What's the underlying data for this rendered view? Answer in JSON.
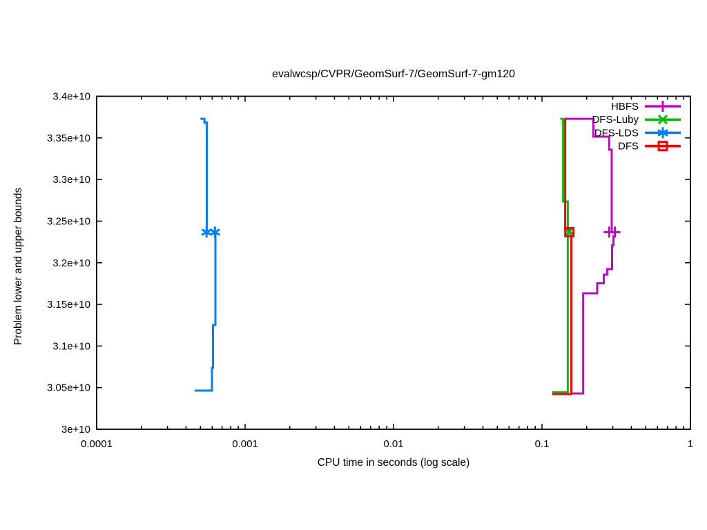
{
  "page": {
    "background": "#ffffff",
    "frame_color": "#000000"
  },
  "chart_data": {
    "type": "line",
    "title": "evalwcsp/CVPR/GeomSurf-7/GeomSurf-7-gm120",
    "grid": false,
    "legend_position": "top-right-inside",
    "x_axis": {
      "label": "CPU time in seconds (log scale)",
      "scale": "log",
      "min": 0.0001,
      "max": 1,
      "major_ticks": [
        {
          "value": 0.0001,
          "label": "0.0001"
        },
        {
          "value": 0.001,
          "label": "0.001"
        },
        {
          "value": 0.01,
          "label": "0.01"
        },
        {
          "value": 0.1,
          "label": "0.1"
        },
        {
          "value": 1,
          "label": "1"
        }
      ],
      "minor_tick_multipliers": [
        2,
        3,
        4,
        5,
        6,
        7,
        8,
        9
      ]
    },
    "y_axis": {
      "label": "Problem lower and upper bounds",
      "scale": "linear",
      "min": 30000000000.0,
      "max": 34000000000.0,
      "major_ticks": [
        {
          "value": 30000000000.0,
          "label": "3e+10"
        },
        {
          "value": 30500000000.0,
          "label": "3.05e+10"
        },
        {
          "value": 31000000000.0,
          "label": "3.1e+10"
        },
        {
          "value": 31500000000.0,
          "label": "3.15e+10"
        },
        {
          "value": 32000000000.0,
          "label": "3.2e+10"
        },
        {
          "value": 32500000000.0,
          "label": "3.25e+10"
        },
        {
          "value": 33000000000.0,
          "label": "3.3e+10"
        },
        {
          "value": 33500000000.0,
          "label": "3.35e+10"
        },
        {
          "value": 34000000000.0,
          "label": "3.4e+10"
        }
      ]
    },
    "series": [
      {
        "name": "HBFS",
        "color": "#cc00cc",
        "marker": "plus",
        "upper_bound": [
          [
            0.1424,
            33730000000.0
          ],
          [
            0.2221,
            33515000000.0
          ],
          [
            0.2836,
            33358000000.0
          ],
          [
            0.295,
            32368000000.0
          ]
        ],
        "lower_bound": [
          [
            0.1577,
            30430000000.0
          ],
          [
            0.1895,
            31633000000.0
          ],
          [
            0.2355,
            31753000000.0
          ],
          [
            0.2608,
            31857000000.0
          ],
          [
            0.2748,
            31923000000.0
          ],
          [
            0.2965,
            32210000000.0
          ],
          [
            0.303,
            32321000000.0
          ],
          [
            0.31,
            32368000000.0
          ]
        ],
        "optimum_markers": [
          [
            0.2836,
            32368000000.0
          ],
          [
            0.31,
            32368000000.0
          ]
        ]
      },
      {
        "name": "DFS-Luby",
        "color": "#00c000",
        "marker": "cross",
        "upper_bound": [
          [
            0.1328,
            33730000000.0
          ],
          [
            0.1388,
            32736000000.0
          ],
          [
            0.1493,
            32368000000.0
          ]
        ],
        "lower_bound": [
          [
            0.117,
            30444000000.0
          ],
          [
            0.1493,
            32368000000.0
          ]
        ],
        "optimum_markers": [
          [
            0.1519,
            32368000000.0
          ]
        ]
      },
      {
        "name": "DFS-LDS",
        "color": "#0080ff",
        "marker": "asterisk",
        "upper_bound": [
          [
            0.0005,
            33730000000.0
          ],
          [
            0.000532,
            33685000000.0
          ],
          [
            0.000552,
            32368000000.0
          ]
        ],
        "lower_bound": [
          [
            0.000457,
            30464000000.0
          ],
          [
            0.000598,
            30738000000.0
          ],
          [
            0.000608,
            31252000000.0
          ],
          [
            0.000631,
            32368000000.0
          ]
        ],
        "optimum_markers": [
          [
            0.00055,
            32368000000.0
          ],
          [
            0.000626,
            32368000000.0
          ]
        ]
      },
      {
        "name": "DFS",
        "color": "#ff0000",
        "marker": "square",
        "upper_bound": [
          [
            0.142,
            33730000000.0
          ],
          [
            0.1433,
            32395000000.0
          ],
          [
            0.153,
            32368000000.0
          ]
        ],
        "lower_bound": [
          [
            0.117,
            30423000000.0
          ],
          [
            0.1577,
            32368000000.0
          ]
        ],
        "optimum_markers": [
          [
            0.153,
            32368000000.0
          ]
        ]
      }
    ]
  }
}
